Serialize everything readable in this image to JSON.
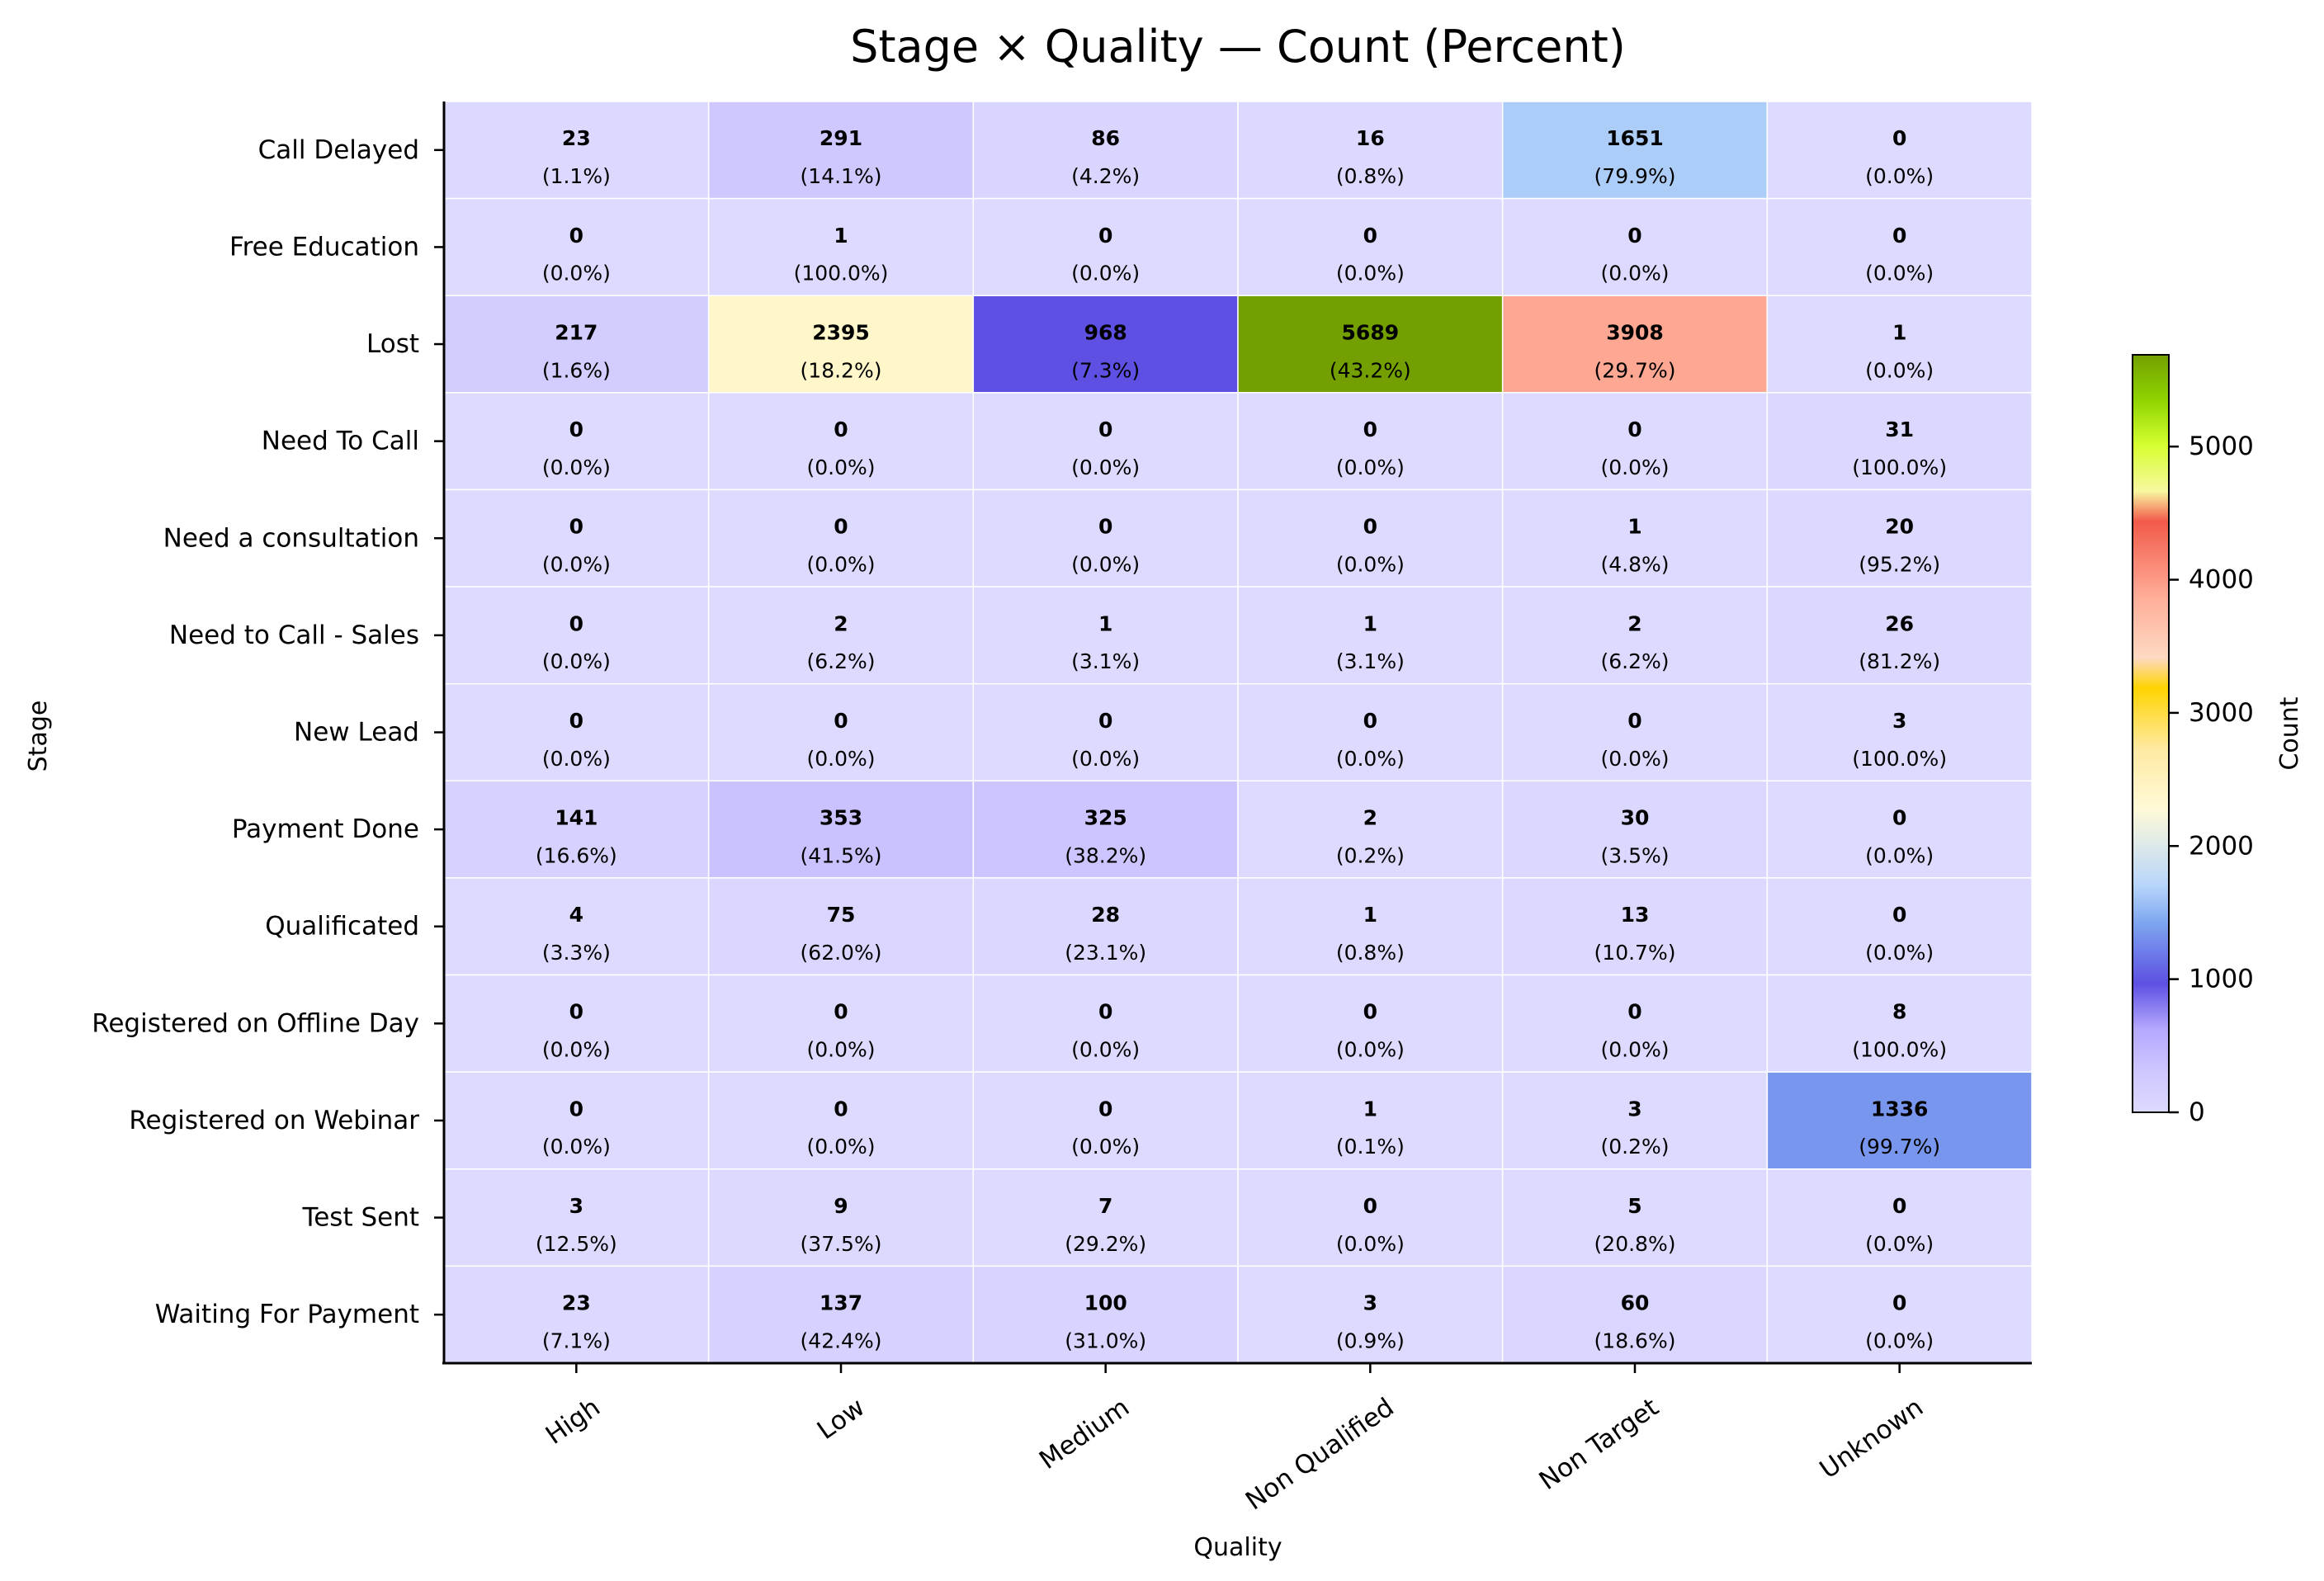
{
  "chart_data": {
    "type": "heatmap",
    "title": "Stage × Quality — Count (Percent)",
    "xlabel": "Quality",
    "ylabel": "Stage",
    "colorbar_label": "Count",
    "colorbar_ticks": [
      0,
      1000,
      2000,
      3000,
      4000,
      5000
    ],
    "value_range": [
      0,
      5689
    ],
    "x_categories": [
      "High",
      "Low",
      "Medium",
      "Non Qualified",
      "Non Target",
      "Unknown"
    ],
    "y_categories": [
      "Call Delayed",
      "Free Education",
      "Lost",
      "Need To Call",
      "Need a consultation",
      "Need to Call - Sales",
      "New Lead",
      "Payment Done",
      "Qualificated",
      "Registered on Offline Day",
      "Registered on Webinar",
      "Test Sent",
      "Waiting For Payment"
    ],
    "counts": [
      [
        23,
        291,
        86,
        16,
        1651,
        0
      ],
      [
        0,
        1,
        0,
        0,
        0,
        0
      ],
      [
        217,
        2395,
        968,
        5689,
        3908,
        1
      ],
      [
        0,
        0,
        0,
        0,
        0,
        31
      ],
      [
        0,
        0,
        0,
        0,
        1,
        20
      ],
      [
        0,
        2,
        1,
        1,
        2,
        26
      ],
      [
        0,
        0,
        0,
        0,
        0,
        3
      ],
      [
        141,
        353,
        325,
        2,
        30,
        0
      ],
      [
        4,
        75,
        28,
        1,
        13,
        0
      ],
      [
        0,
        0,
        0,
        0,
        0,
        8
      ],
      [
        0,
        0,
        0,
        1,
        3,
        1336
      ],
      [
        3,
        9,
        7,
        0,
        5,
        0
      ],
      [
        23,
        137,
        100,
        3,
        60,
        0
      ]
    ],
    "percents": [
      [
        "(1.1%)",
        "(14.1%)",
        "(4.2%)",
        "(0.8%)",
        "(79.9%)",
        "(0.0%)"
      ],
      [
        "(0.0%)",
        "(100.0%)",
        "(0.0%)",
        "(0.0%)",
        "(0.0%)",
        "(0.0%)"
      ],
      [
        "(1.6%)",
        "(18.2%)",
        "(7.3%)",
        "(43.2%)",
        "(29.7%)",
        "(0.0%)"
      ],
      [
        "(0.0%)",
        "(0.0%)",
        "(0.0%)",
        "(0.0%)",
        "(0.0%)",
        "(100.0%)"
      ],
      [
        "(0.0%)",
        "(0.0%)",
        "(0.0%)",
        "(0.0%)",
        "(4.8%)",
        "(95.2%)"
      ],
      [
        "(0.0%)",
        "(6.2%)",
        "(3.1%)",
        "(3.1%)",
        "(6.2%)",
        "(81.2%)"
      ],
      [
        "(0.0%)",
        "(0.0%)",
        "(0.0%)",
        "(0.0%)",
        "(0.0%)",
        "(100.0%)"
      ],
      [
        "(16.6%)",
        "(41.5%)",
        "(38.2%)",
        "(0.2%)",
        "(3.5%)",
        "(0.0%)"
      ],
      [
        "(3.3%)",
        "(62.0%)",
        "(23.1%)",
        "(0.8%)",
        "(10.7%)",
        "(0.0%)"
      ],
      [
        "(0.0%)",
        "(0.0%)",
        "(0.0%)",
        "(0.0%)",
        "(0.0%)",
        "(100.0%)"
      ],
      [
        "(0.0%)",
        "(0.0%)",
        "(0.0%)",
        "(0.1%)",
        "(0.2%)",
        "(99.7%)"
      ],
      [
        "(12.5%)",
        "(37.5%)",
        "(29.2%)",
        "(0.0%)",
        "(20.8%)",
        "(0.0%)"
      ],
      [
        "(7.1%)",
        "(42.4%)",
        "(31.0%)",
        "(0.9%)",
        "(18.6%)",
        "(0.0%)"
      ]
    ],
    "colormap_stops": [
      [
        0,
        "#dcdaff"
      ],
      [
        0.05,
        "#cfc9ff"
      ],
      [
        0.11,
        "#b4a8ff"
      ],
      [
        0.17,
        "#5d50e2"
      ],
      [
        0.25,
        "#7ea6f0"
      ],
      [
        0.3,
        "#b8d6fb"
      ],
      [
        0.4,
        "#fffad8"
      ],
      [
        0.48,
        "#ffe9a2"
      ],
      [
        0.56,
        "#ffd400"
      ],
      [
        0.6,
        "#fed9c2"
      ],
      [
        0.68,
        "#ffad98"
      ],
      [
        0.78,
        "#f25a4a"
      ],
      [
        0.82,
        "#f8f7a0"
      ],
      [
        0.88,
        "#d6ff30"
      ],
      [
        0.94,
        "#8fd400"
      ],
      [
        1,
        "#73a000"
      ]
    ]
  }
}
